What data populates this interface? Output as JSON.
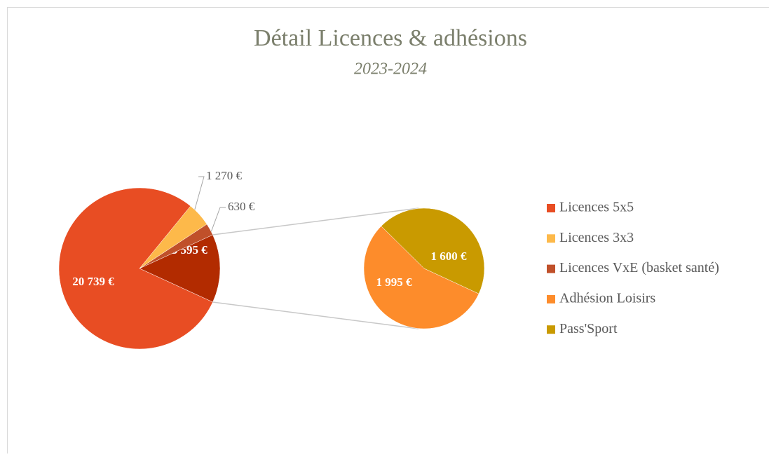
{
  "chart_data": {
    "type": "pie_of_pie",
    "title": "Détail Licences & adhésions",
    "subtitle": "2023-2024",
    "categories": [
      "Licences 5x5",
      "Licences 3x3",
      "Licences VxE (basket santé)",
      "Adhésion Loisirs",
      "Pass'Sport"
    ],
    "values": [
      20739,
      1270,
      630,
      1995,
      1600
    ],
    "value_labels": [
      "20 739 €",
      "1 270 €",
      "630 €",
      "1 995 €",
      "1 600 €"
    ],
    "colors": [
      "#e84d23",
      "#fdb94a",
      "#c0502a",
      "#fd8c2b",
      "#c99a00"
    ],
    "second_plot_count": 2,
    "other": {
      "value": 3595,
      "label": "3 595 €",
      "color": "#b22b00"
    },
    "legend": "right"
  }
}
